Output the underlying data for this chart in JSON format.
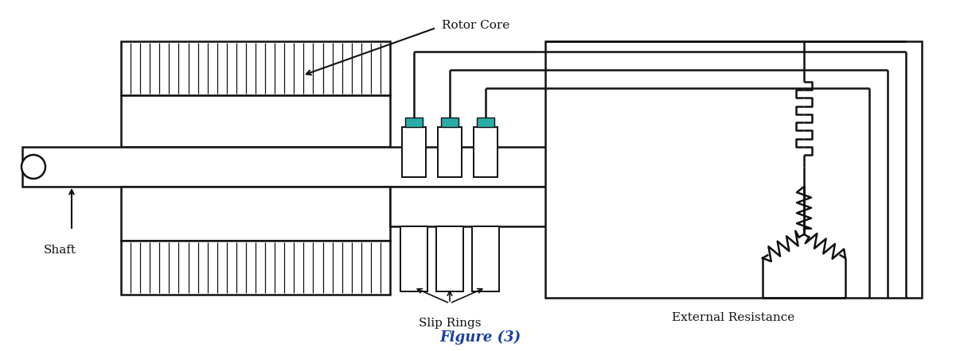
{
  "title": "Figure (3)",
  "title_color": "#1a3fa0",
  "title_fontsize": 13,
  "bg_color": "#ffffff",
  "line_color": "#111111",
  "teal_color": "#2aada8",
  "label_shaft": "Shaft",
  "label_rotor_core": "Rotor Core",
  "label_slip_rings": "Slip Rings",
  "label_ext_resistance": "External Resistance",
  "figsize": [
    12.06,
    4.42
  ],
  "dpi": 100
}
